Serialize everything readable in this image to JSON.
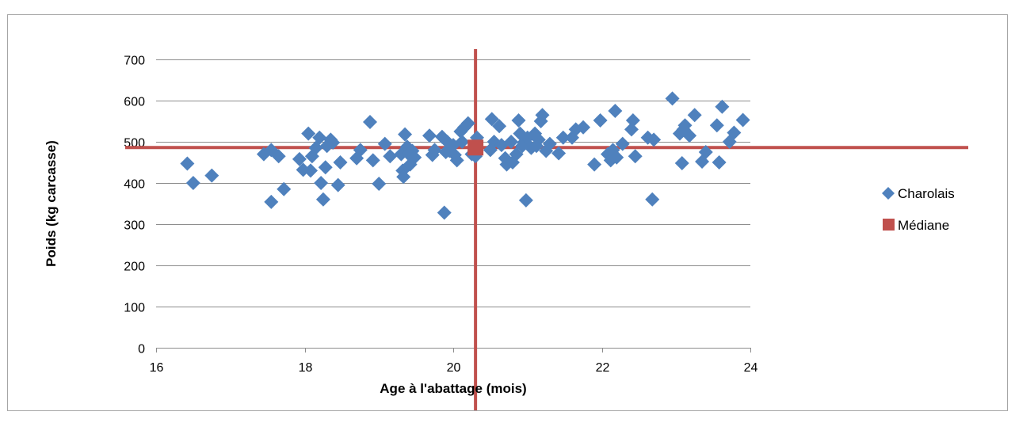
{
  "chart_data": {
    "type": "scatter",
    "title": "",
    "xlabel": "Age à l'abattage (mois)",
    "ylabel": "Poids (kg carcasse)",
    "xlim": [
      16,
      24
    ],
    "ylim": [
      0,
      700
    ],
    "x_ticks": [
      "16",
      "18",
      "20",
      "22",
      "24"
    ],
    "y_ticks": [
      "0",
      "100",
      "200",
      "300",
      "400",
      "500",
      "600",
      "700"
    ],
    "grid": "horizontal",
    "legend": "right",
    "median_lines": {
      "x": 20.3,
      "y": 486,
      "color": "#c0504d"
    },
    "series": [
      {
        "name": "Charolais",
        "marker": "diamond",
        "color": "#4f81bd",
        "points": [
          [
            16.42,
            447
          ],
          [
            16.5,
            400
          ],
          [
            16.75,
            418
          ],
          [
            17.45,
            470
          ],
          [
            17.55,
            480
          ],
          [
            17.55,
            354
          ],
          [
            17.65,
            465
          ],
          [
            17.72,
            385
          ],
          [
            17.93,
            458
          ],
          [
            17.98,
            432
          ],
          [
            18.05,
            520
          ],
          [
            18.08,
            430
          ],
          [
            18.1,
            465
          ],
          [
            18.15,
            485
          ],
          [
            18.2,
            510
          ],
          [
            18.22,
            400
          ],
          [
            18.25,
            360
          ],
          [
            18.28,
            438
          ],
          [
            18.3,
            490
          ],
          [
            18.35,
            505
          ],
          [
            18.38,
            498
          ],
          [
            18.45,
            395
          ],
          [
            18.48,
            450
          ],
          [
            18.7,
            460
          ],
          [
            18.75,
            480
          ],
          [
            18.88,
            548
          ],
          [
            18.92,
            455
          ],
          [
            19.0,
            398
          ],
          [
            19.08,
            495
          ],
          [
            19.15,
            465
          ],
          [
            19.3,
            470
          ],
          [
            19.32,
            430
          ],
          [
            19.33,
            415
          ],
          [
            19.35,
            518
          ],
          [
            19.38,
            488
          ],
          [
            19.4,
            470
          ],
          [
            19.42,
            445
          ],
          [
            19.45,
            478
          ],
          [
            19.48,
            462
          ],
          [
            19.68,
            515
          ],
          [
            19.72,
            468
          ],
          [
            19.75,
            480
          ],
          [
            19.85,
            512
          ],
          [
            19.88,
            328
          ],
          [
            19.9,
            475
          ],
          [
            19.92,
            500
          ],
          [
            19.95,
            478
          ],
          [
            20.0,
            492
          ],
          [
            20.02,
            468
          ],
          [
            20.05,
            455
          ],
          [
            20.1,
            525
          ],
          [
            20.12,
            500
          ],
          [
            20.15,
            535
          ],
          [
            20.2,
            545
          ],
          [
            20.25,
            470
          ],
          [
            20.3,
            465
          ],
          [
            20.32,
            510
          ],
          [
            20.5,
            480
          ],
          [
            20.52,
            555
          ],
          [
            20.55,
            500
          ],
          [
            20.62,
            538
          ],
          [
            20.65,
            492
          ],
          [
            20.7,
            460
          ],
          [
            20.72,
            445
          ],
          [
            20.78,
            500
          ],
          [
            20.8,
            450
          ],
          [
            20.85,
            470
          ],
          [
            20.88,
            552
          ],
          [
            20.9,
            520
          ],
          [
            20.93,
            490
          ],
          [
            20.95,
            498
          ],
          [
            20.98,
            358
          ],
          [
            21.0,
            510
          ],
          [
            21.05,
            485
          ],
          [
            21.1,
            520
          ],
          [
            21.12,
            490
          ],
          [
            21.15,
            505
          ],
          [
            21.18,
            550
          ],
          [
            21.2,
            565
          ],
          [
            21.25,
            478
          ],
          [
            21.3,
            495
          ],
          [
            21.42,
            472
          ],
          [
            21.48,
            510
          ],
          [
            21.6,
            510
          ],
          [
            21.65,
            530
          ],
          [
            21.75,
            535
          ],
          [
            21.9,
            445
          ],
          [
            21.98,
            552
          ],
          [
            22.08,
            470
          ],
          [
            22.12,
            455
          ],
          [
            22.15,
            480
          ],
          [
            22.18,
            575
          ],
          [
            22.2,
            462
          ],
          [
            22.28,
            495
          ],
          [
            22.4,
            530
          ],
          [
            22.42,
            552
          ],
          [
            22.45,
            465
          ],
          [
            22.62,
            510
          ],
          [
            22.68,
            360
          ],
          [
            22.7,
            505
          ],
          [
            22.95,
            605
          ],
          [
            23.05,
            520
          ],
          [
            23.08,
            448
          ],
          [
            23.1,
            530
          ],
          [
            23.12,
            540
          ],
          [
            23.18,
            515
          ],
          [
            23.25,
            565
          ],
          [
            23.35,
            452
          ],
          [
            23.4,
            475
          ],
          [
            23.55,
            540
          ],
          [
            23.58,
            450
          ],
          [
            23.62,
            585
          ],
          [
            23.72,
            500
          ],
          [
            23.78,
            522
          ],
          [
            23.9,
            553
          ]
        ]
      },
      {
        "name": "Médiane",
        "marker": "square",
        "color": "#c0504d",
        "points": [
          [
            20.3,
            486
          ]
        ]
      }
    ]
  }
}
